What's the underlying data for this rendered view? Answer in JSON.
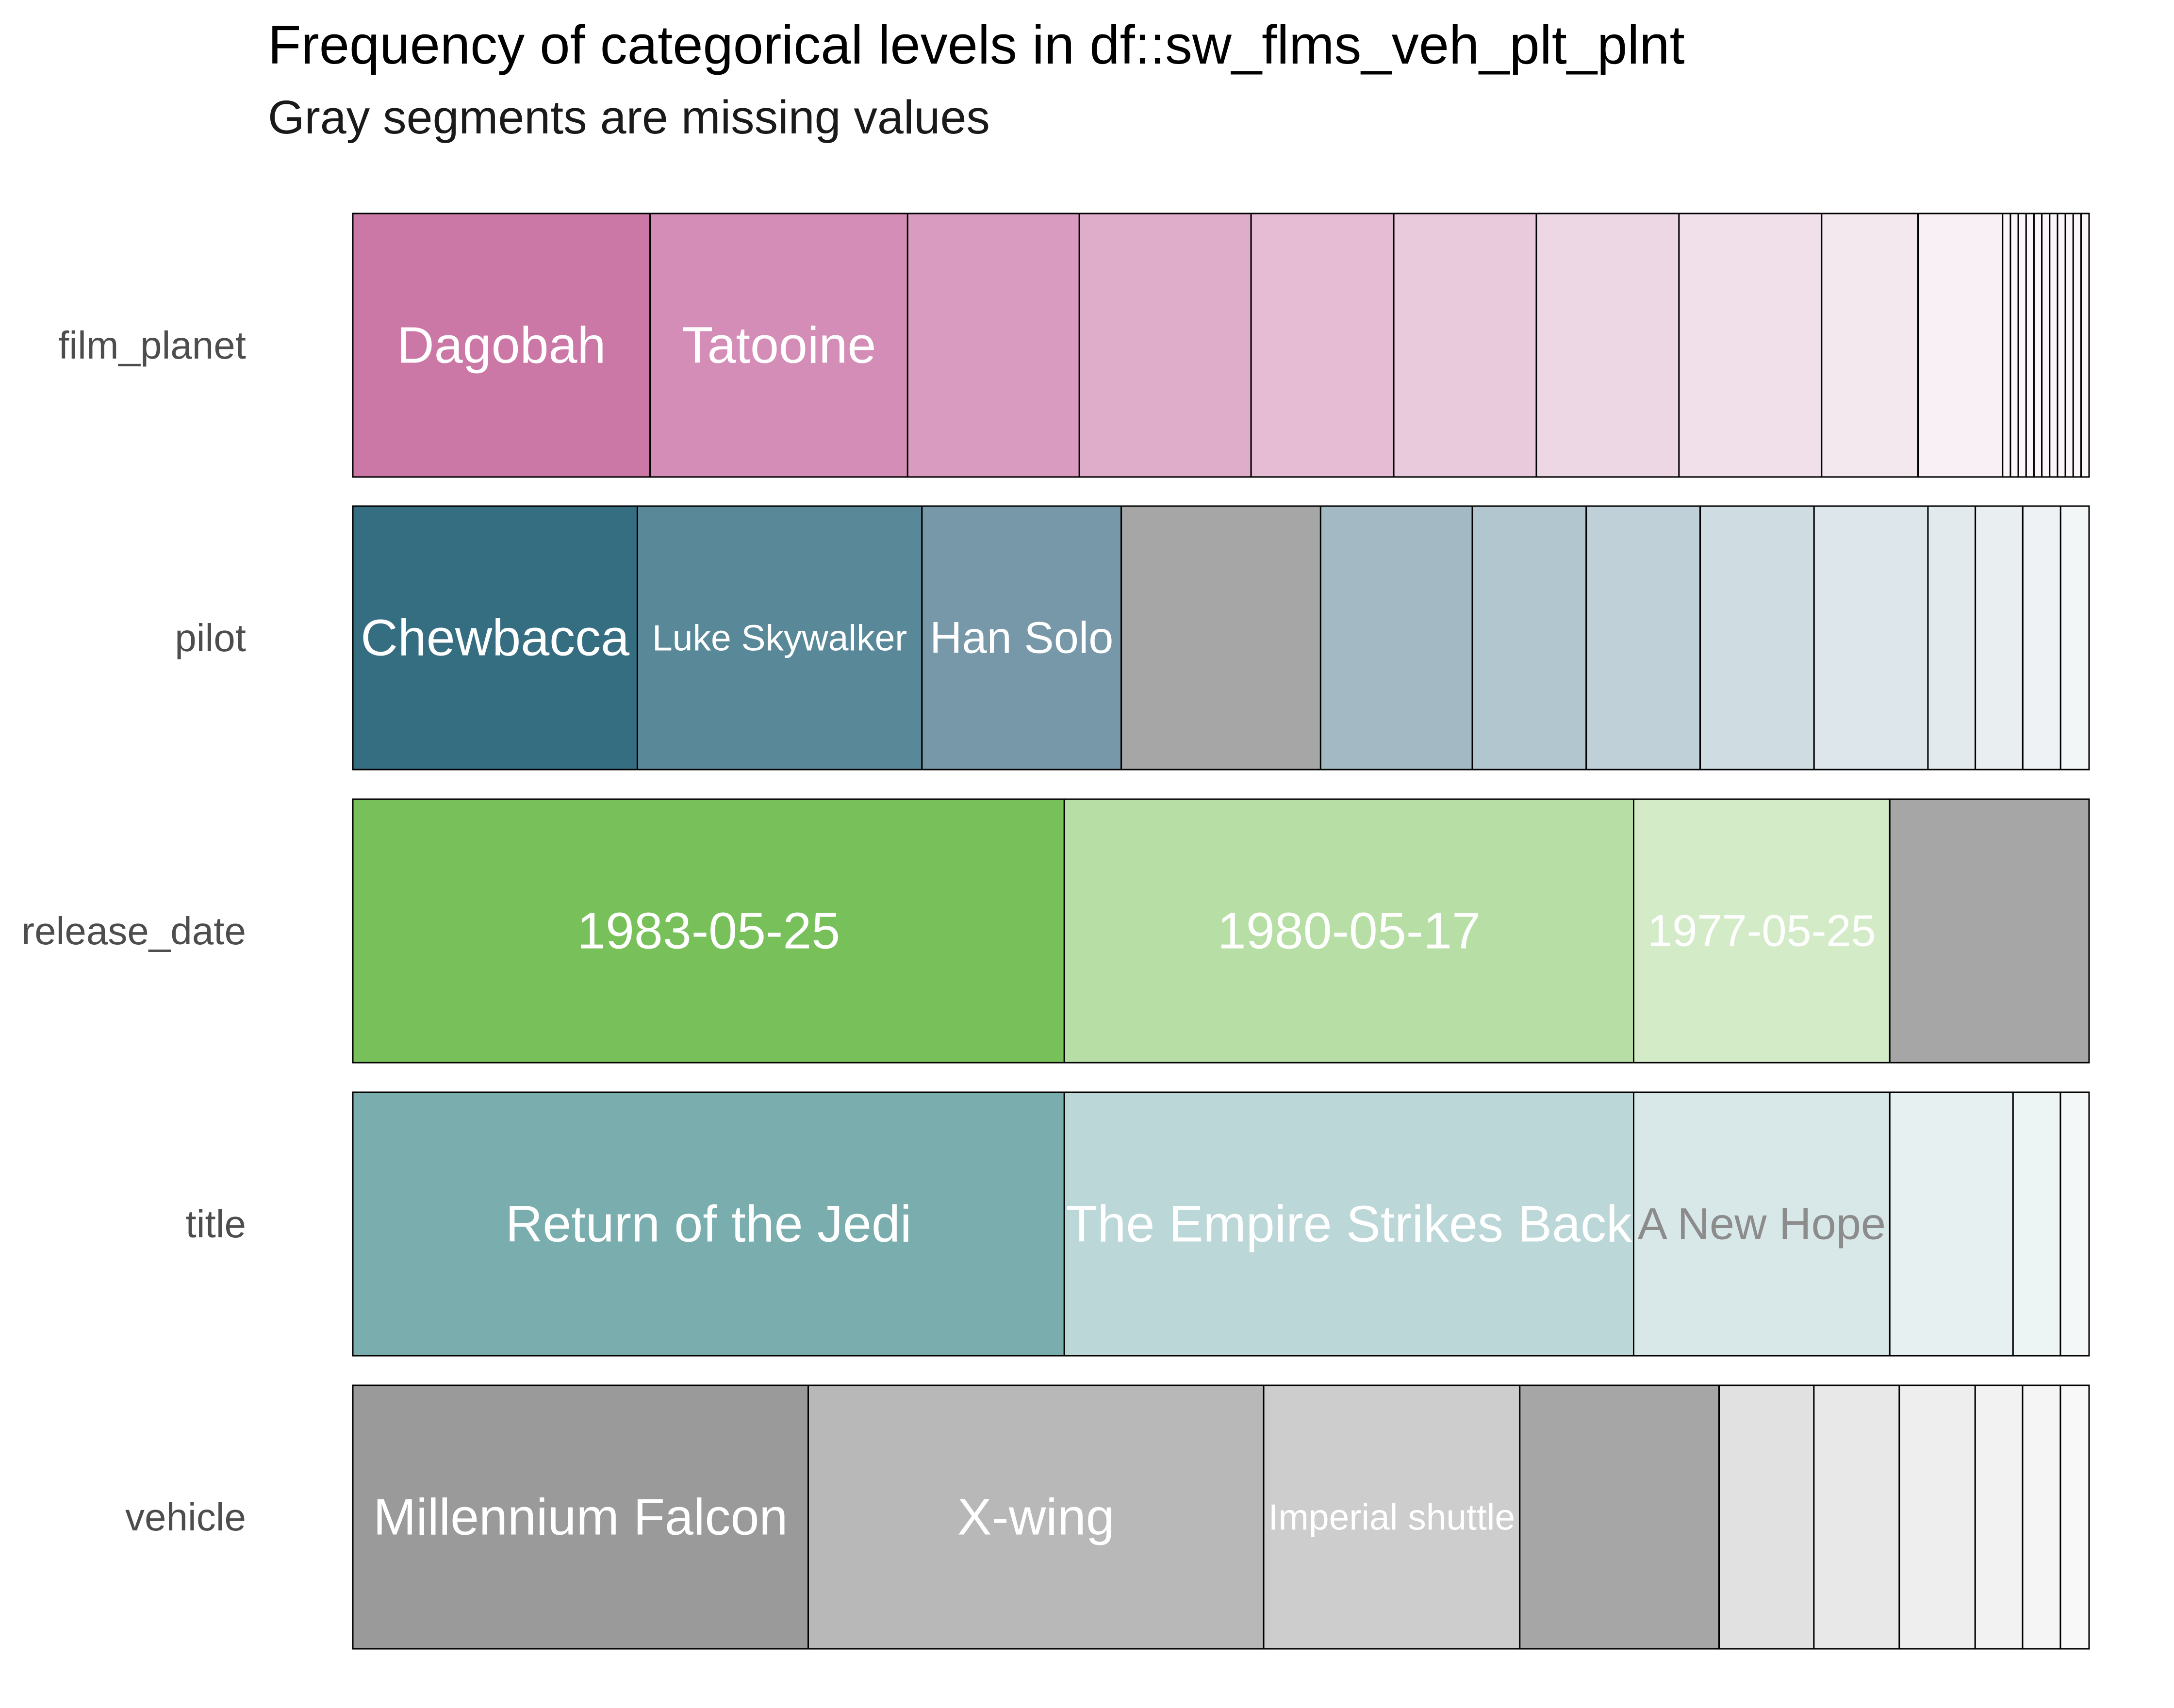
{
  "chart_data": {
    "type": "stacked-bar",
    "title": "Frequency of categorical levels in df::sw_flms_veh_plt_plnt",
    "subtitle": "Gray segments are missing values",
    "orientation": "horizontal",
    "x_range": [
      0,
      1
    ],
    "grid": false,
    "legend": "none",
    "rows": [
      {
        "variable": "film_planet",
        "segments": [
          {
            "label": "Dagobah",
            "fraction": 0.1705,
            "color": "#cc78a7",
            "text_color": "#ffffff",
            "size": "large"
          },
          {
            "label": "Tatooine",
            "fraction": 0.1477,
            "color": "#d48db6",
            "text_color": "#ffffff",
            "size": "large"
          },
          {
            "label": "",
            "fraction": 0.0985,
            "color": "#d99bbf"
          },
          {
            "label": "",
            "fraction": 0.0985,
            "color": "#dfacca"
          },
          {
            "label": "",
            "fraction": 0.0818,
            "color": "#e5bcd4"
          },
          {
            "label": "",
            "fraction": 0.0818,
            "color": "#e9c9dc"
          },
          {
            "label": "",
            "fraction": 0.0818,
            "color": "#eed7e5"
          },
          {
            "label": "",
            "fraction": 0.0818,
            "color": "#f1e0ea"
          },
          {
            "label": "",
            "fraction": 0.0553,
            "color": "#f4e8ef"
          },
          {
            "label": "",
            "fraction": 0.0485,
            "color": "#f8f0f4"
          },
          {
            "label": "",
            "fraction": 0.0045,
            "color": "#fbf6f9"
          },
          {
            "label": "",
            "fraction": 0.0045,
            "color": "#fbf6f9"
          },
          {
            "label": "",
            "fraction": 0.0045,
            "color": "#fbf6f9"
          },
          {
            "label": "",
            "fraction": 0.0045,
            "color": "#fbf6f9"
          },
          {
            "label": "",
            "fraction": 0.0045,
            "color": "#fbf6f9"
          },
          {
            "label": "",
            "fraction": 0.0045,
            "color": "#fbf6f9"
          },
          {
            "label": "",
            "fraction": 0.0045,
            "color": "#fbf6f9"
          },
          {
            "label": "",
            "fraction": 0.0045,
            "color": "#fbf6f9"
          },
          {
            "label": "",
            "fraction": 0.0045,
            "color": "#fbf6f9"
          },
          {
            "label": "",
            "fraction": 0.0045,
            "color": "#fbf6f9"
          },
          {
            "label": "",
            "fraction": 0.0046,
            "color": "#fbf6f9"
          }
        ]
      },
      {
        "variable": "pilot",
        "segments": [
          {
            "label": "Chewbacca",
            "fraction": 0.1639,
            "color": "#356d81",
            "text_color": "#ffffff",
            "size": "large"
          },
          {
            "label": "Luke Skywalker",
            "fraction": 0.1639,
            "color": "#598899",
            "text_color": "#ffffff",
            "size": "small"
          },
          {
            "label": "Han Solo",
            "fraction": 0.1148,
            "color": "#7698a8",
            "text_color": "#ffffff",
            "size": "medium"
          },
          {
            "label": "",
            "fraction": 0.1148,
            "color": "#a6a6a6"
          },
          {
            "label": "",
            "fraction": 0.0874,
            "color": "#a3bac5"
          },
          {
            "label": "",
            "fraction": 0.0656,
            "color": "#b2c6cf"
          },
          {
            "label": "",
            "fraction": 0.0656,
            "color": "#bfd0d8"
          },
          {
            "label": "",
            "fraction": 0.0656,
            "color": "#cfdce1"
          },
          {
            "label": "",
            "fraction": 0.0656,
            "color": "#dde6eb"
          },
          {
            "label": "",
            "fraction": 0.0273,
            "color": "#e3eaed"
          },
          {
            "label": "",
            "fraction": 0.0273,
            "color": "#e9eff1"
          },
          {
            "label": "",
            "fraction": 0.0218,
            "color": "#eef2f4"
          },
          {
            "label": "",
            "fraction": 0.0164,
            "color": "#f3f6f7"
          }
        ]
      },
      {
        "variable": "release_date",
        "segments": [
          {
            "label": "1983-05-25",
            "fraction": 0.4098,
            "color": "#78c05a",
            "text_color": "#ffffff",
            "size": "large"
          },
          {
            "label": "1980-05-17",
            "fraction": 0.3279,
            "color": "#b7dea5",
            "text_color": "#ffffff",
            "size": "large"
          },
          {
            "label": "1977-05-25",
            "fraction": 0.1475,
            "color": "#d4ebc8",
            "text_color": "#ffffff",
            "size": "medium"
          },
          {
            "label": "",
            "fraction": 0.1148,
            "color": "#a6a6a6"
          }
        ]
      },
      {
        "variable": "title",
        "segments": [
          {
            "label": "Return of the Jedi",
            "fraction": 0.4098,
            "color": "#7aaeae",
            "text_color": "#ffffff",
            "size": "large"
          },
          {
            "label": "The Empire Strikes Back",
            "fraction": 0.3279,
            "color": "#bcd7d8",
            "text_color": "#ffffff",
            "size": "large"
          },
          {
            "label": "A New Hope",
            "fraction": 0.1475,
            "color": "#d8e8e8",
            "text_color": "#8c8c8c",
            "size": "medium"
          },
          {
            "label": "",
            "fraction": 0.071,
            "color": "#e6f0f0"
          },
          {
            "label": "",
            "fraction": 0.0273,
            "color": "#edf4f4"
          },
          {
            "label": "",
            "fraction": 0.0165,
            "color": "#f3f7f7"
          }
        ]
      },
      {
        "variable": "vehicle",
        "segments": [
          {
            "label": "Millennium Falcon",
            "fraction": 0.2623,
            "color": "#9a9a9a",
            "text_color": "#ffffff",
            "size": "large"
          },
          {
            "label": "X-wing",
            "fraction": 0.2623,
            "color": "#b8b8b8",
            "text_color": "#ffffff",
            "size": "large"
          },
          {
            "label": "Imperial shuttle",
            "fraction": 0.1475,
            "color": "#cdcdcd",
            "text_color": "#ffffff",
            "size": "small"
          },
          {
            "label": "",
            "fraction": 0.1148,
            "color": "#a6a6a6"
          },
          {
            "label": "",
            "fraction": 0.0546,
            "color": "#e1e1e1"
          },
          {
            "label": "",
            "fraction": 0.0492,
            "color": "#e8e8e8"
          },
          {
            "label": "",
            "fraction": 0.0437,
            "color": "#eeeeee"
          },
          {
            "label": "",
            "fraction": 0.0273,
            "color": "#f2f2f2"
          },
          {
            "label": "",
            "fraction": 0.0218,
            "color": "#f5f5f5"
          },
          {
            "label": "",
            "fraction": 0.0165,
            "color": "#f8f8f8"
          }
        ]
      }
    ]
  }
}
